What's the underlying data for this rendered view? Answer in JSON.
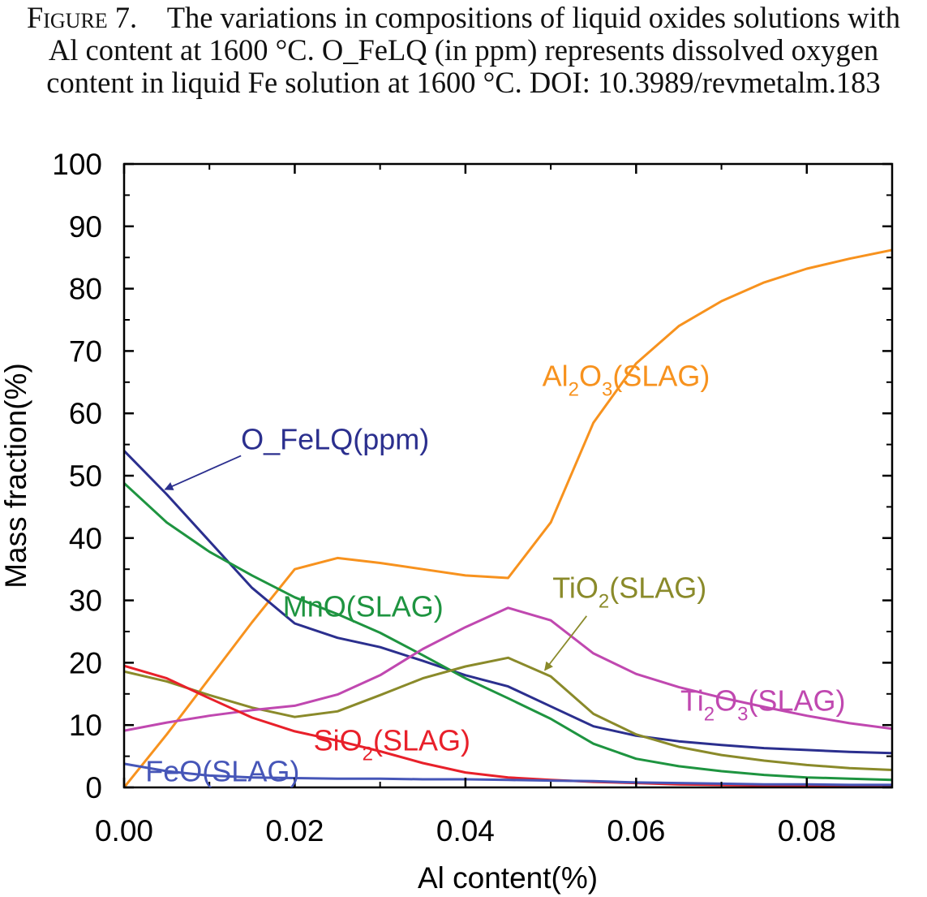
{
  "caption": {
    "label": "Figure 7.",
    "text": "The variations in compositions of liquid oxides solutions with Al content at 1600 °C. O_FeLQ (in ppm) represents dissolved oxygen content in liquid Fe solution at 1600 °C. DOI: 10.3989/revmetalm.183"
  },
  "chart_data": {
    "type": "line",
    "xlabel": "Al content(%)",
    "ylabel": "Mass fraction(%)",
    "xlim": [
      0,
      0.09
    ],
    "ylim": [
      0,
      100
    ],
    "xticks": [
      "0.00",
      "0.02",
      "0.04",
      "0.06",
      "0.08"
    ],
    "xtick_values": [
      0,
      0.02,
      0.04,
      0.06,
      0.08
    ],
    "yticks": [
      "0",
      "10",
      "20",
      "30",
      "40",
      "50",
      "60",
      "70",
      "80",
      "90",
      "100"
    ],
    "ytick_values": [
      0,
      10,
      20,
      30,
      40,
      50,
      60,
      70,
      80,
      90,
      100
    ],
    "grid": false,
    "series": [
      {
        "name": "Al2O3(SLAG)",
        "color": "#f7921e",
        "x": [
          0,
          0.005,
          0.01,
          0.015,
          0.02,
          0.025,
          0.03,
          0.035,
          0.04,
          0.045,
          0.05,
          0.055,
          0.06,
          0.065,
          0.07,
          0.075,
          0.08,
          0.085,
          0.09
        ],
        "y": [
          0,
          8.5,
          17.5,
          26.5,
          35,
          36.8,
          36,
          35,
          34,
          33.6,
          42.5,
          58.5,
          68,
          74,
          78,
          81,
          83.2,
          84.8,
          86.2
        ]
      },
      {
        "name": "O_FeLQ(ppm)",
        "color": "#2b2f8e",
        "x": [
          0,
          0.005,
          0.01,
          0.015,
          0.02,
          0.025,
          0.03,
          0.035,
          0.04,
          0.045,
          0.05,
          0.055,
          0.06,
          0.065,
          0.07,
          0.075,
          0.08,
          0.085,
          0.09
        ],
        "y": [
          54,
          47,
          39.5,
          32,
          26.3,
          24,
          22.5,
          20.3,
          18,
          16.2,
          13,
          9.8,
          8.3,
          7.4,
          6.8,
          6.3,
          6,
          5.7,
          5.5
        ]
      },
      {
        "name": "MnO(SLAG)",
        "color": "#1e9440",
        "x": [
          0,
          0.005,
          0.01,
          0.015,
          0.02,
          0.025,
          0.03,
          0.035,
          0.04,
          0.045,
          0.05,
          0.055,
          0.06,
          0.065,
          0.07,
          0.075,
          0.08,
          0.085,
          0.09
        ],
        "y": [
          48.8,
          42.5,
          37.8,
          34,
          30.5,
          27.8,
          24.8,
          21.2,
          17.5,
          14.3,
          11,
          7,
          4.6,
          3.4,
          2.6,
          2,
          1.6,
          1.4,
          1.2
        ]
      },
      {
        "name": "TiO2(SLAG)",
        "color": "#8a8a2a",
        "x": [
          0,
          0.005,
          0.01,
          0.015,
          0.02,
          0.025,
          0.03,
          0.035,
          0.04,
          0.045,
          0.05,
          0.055,
          0.06,
          0.065,
          0.07,
          0.075,
          0.08,
          0.085,
          0.09
        ],
        "y": [
          18.6,
          17,
          14.8,
          12.8,
          11.3,
          12.2,
          14.8,
          17.5,
          19.4,
          20.8,
          17.8,
          11.8,
          8.5,
          6.5,
          5.2,
          4.3,
          3.6,
          3.1,
          2.8
        ]
      },
      {
        "name": "Ti2O3(SLAG)",
        "color": "#c048b0",
        "x": [
          0,
          0.005,
          0.01,
          0.015,
          0.02,
          0.025,
          0.03,
          0.035,
          0.04,
          0.045,
          0.05,
          0.055,
          0.06,
          0.065,
          0.07,
          0.075,
          0.08,
          0.085,
          0.09
        ],
        "y": [
          9.1,
          10.4,
          11.5,
          12.4,
          13.1,
          14.9,
          18,
          22.2,
          25.7,
          28.8,
          26.8,
          21.5,
          18.2,
          16.1,
          14.4,
          12.9,
          11.5,
          10.3,
          9.4
        ]
      },
      {
        "name": "SiO2(SLAG)",
        "color": "#e8202a",
        "x": [
          0,
          0.005,
          0.01,
          0.015,
          0.02,
          0.025,
          0.03,
          0.035,
          0.04,
          0.045,
          0.05,
          0.055,
          0.06,
          0.065,
          0.07,
          0.075,
          0.08,
          0.085,
          0.09
        ],
        "y": [
          19.5,
          17.5,
          14.3,
          11.2,
          9,
          7.5,
          5.8,
          3.9,
          2.4,
          1.6,
          1.2,
          0.9,
          0.7,
          0.5,
          0.4,
          0.3,
          0.3,
          0.2,
          0.2
        ]
      },
      {
        "name": "FeO(SLAG)",
        "color": "#4656b8",
        "x": [
          0,
          0.005,
          0.01,
          0.015,
          0.02,
          0.025,
          0.03,
          0.035,
          0.04,
          0.045,
          0.05,
          0.055,
          0.06,
          0.065,
          0.07,
          0.075,
          0.08,
          0.085,
          0.09
        ],
        "y": [
          3.8,
          2.6,
          1.9,
          1.6,
          1.5,
          1.4,
          1.4,
          1.3,
          1.3,
          1.2,
          1.1,
          1.0,
          0.8,
          0.7,
          0.6,
          0.5,
          0.5,
          0.4,
          0.4
        ]
      }
    ],
    "annotations": [
      {
        "series": "Al2O3(SLAG)",
        "parts": [
          "Al",
          "2",
          "O",
          "3",
          "(SLAG)"
        ],
        "color": "#f7921e",
        "at": [
          0.049,
          64.4
        ]
      },
      {
        "series": "O_FeLQ(ppm)",
        "parts": [
          "O_FeLQ(ppm)"
        ],
        "color": "#2b2f8e",
        "at": [
          0.0137,
          54.2
        ],
        "arrow_from": [
          0.0137,
          53.2
        ],
        "arrow_to": [
          0.0048,
          47.8
        ]
      },
      {
        "series": "MnO(SLAG)",
        "parts": [
          "MnO(SLAG)"
        ],
        "color": "#1e9440",
        "at": [
          0.0186,
          27.4
        ]
      },
      {
        "series": "TiO2(SLAG)",
        "parts": [
          "TiO",
          "2",
          "(SLAG)"
        ],
        "color": "#8a8a2a",
        "at": [
          0.0502,
          30.4
        ],
        "arrow_from": [
          0.0542,
          27.5
        ],
        "arrow_to": [
          0.0493,
          18.8
        ]
      },
      {
        "series": "Ti2O3(SLAG)",
        "parts": [
          "Ti",
          "2",
          "O",
          "3",
          "(SLAG)"
        ],
        "color": "#c048b0",
        "at": [
          0.0652,
          12.3
        ]
      },
      {
        "series": "SiO2(SLAG)",
        "parts": [
          "SiO",
          "2",
          "(SLAG)"
        ],
        "color": "#e8202a",
        "at": [
          0.0222,
          5.9
        ]
      },
      {
        "series": "FeO(SLAG)",
        "parts": [
          "FeO(SLAG)"
        ],
        "color": "#4656b8",
        "at": [
          0.0025,
          1.0
        ]
      }
    ]
  }
}
